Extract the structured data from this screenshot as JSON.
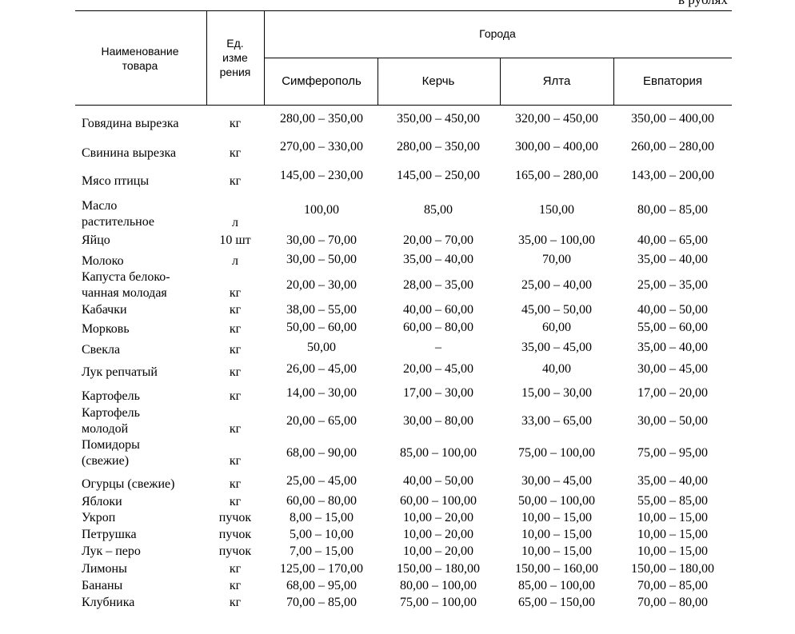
{
  "note": "в рублях",
  "table": {
    "header": {
      "name": "Наименование\nтовара",
      "unit": "Ед.\nизме\nрения",
      "group": "Города",
      "cities": [
        "Симферополь",
        "Керчь",
        "Ялта",
        "Евпатория"
      ]
    },
    "rows": [
      {
        "name": "Говядина вырезка",
        "unit": "кг",
        "prices": [
          "280,00 – 350,00",
          "350,00 – 450,00",
          "320,00 – 450,00",
          "350,00 – 400,00"
        ]
      },
      {
        "name": "Свинина вырезка",
        "unit": "кг",
        "prices": [
          "270,00 – 330,00",
          "280,00 – 350,00",
          "300,00 – 400,00",
          "260,00 – 280,00"
        ]
      },
      {
        "name": "Мясо птицы",
        "unit": "кг",
        "prices": [
          "145,00 – 230,00",
          "145,00 – 250,00",
          "165,00 – 280,00",
          "143,00 – 200,00"
        ]
      },
      {
        "name": "Масло\nрастительное",
        "unit": "л",
        "prices": [
          "100,00",
          "85,00",
          "150,00",
          "80,00 – 85,00"
        ]
      },
      {
        "name": "Яйцо",
        "unit": "10 шт",
        "prices": [
          "30,00 – 70,00",
          "20,00 – 70,00",
          "35,00 – 100,00",
          "40,00 – 65,00"
        ]
      },
      {
        "name": "Молоко",
        "unit": "л",
        "prices": [
          "30,00 – 50,00",
          "35,00 – 40,00",
          "70,00",
          "35,00 – 40,00"
        ]
      },
      {
        "name": "Капуста белоко-\nчанная молодая",
        "unit": "кг",
        "prices": [
          "20,00 – 30,00",
          "28,00 – 35,00",
          "25,00 – 40,00",
          "25,00 – 35,00"
        ]
      },
      {
        "name": "Кабачки",
        "unit": "кг",
        "prices": [
          "38,00 – 55,00",
          "40,00 – 60,00",
          "45,00 – 50,00",
          "40,00 – 50,00"
        ]
      },
      {
        "name": "Морковь",
        "unit": "кг",
        "prices": [
          "50,00 – 60,00",
          "60,00 – 80,00",
          "60,00",
          "55,00 – 60,00"
        ]
      },
      {
        "name": "Свекла",
        "unit": "кг",
        "prices": [
          "50,00",
          "–",
          "35,00 – 45,00",
          "35,00 – 40,00"
        ]
      },
      {
        "name": "Лук репчатый",
        "unit": "кг",
        "prices": [
          "26,00 – 45,00",
          "20,00 – 45,00",
          "40,00",
          "30,00 – 45,00"
        ]
      },
      {
        "name": "Картофель",
        "unit": "кг",
        "prices": [
          "14,00 – 30,00",
          "17,00 – 30,00",
          "15,00 – 30,00",
          "17,00 – 20,00"
        ]
      },
      {
        "name": "Картофель\nмолодой",
        "unit": "кг",
        "prices": [
          "20,00 – 65,00",
          "30,00 – 80,00",
          "33,00 – 65,00",
          "30,00 – 50,00"
        ]
      },
      {
        "name": "Помидоры\n(свежие)",
        "unit": "кг",
        "prices": [
          "68,00 – 90,00",
          "85,00 – 100,00",
          "75,00 – 100,00",
          "75,00 – 95,00"
        ]
      },
      {
        "name": "Огурцы (свежие)",
        "unit": "кг",
        "prices": [
          "25,00 – 45,00",
          "40,00 – 50,00",
          "30,00 – 45,00",
          "35,00 – 40,00"
        ]
      },
      {
        "name": "Яблоки",
        "unit": "кг",
        "prices": [
          "60,00 – 80,00",
          "60,00 – 100,00",
          "50,00 – 100,00",
          "55,00 – 85,00"
        ]
      },
      {
        "name": "Укроп",
        "unit": "пучок",
        "prices": [
          "8,00 – 15,00",
          "10,00 – 20,00",
          "10,00 – 15,00",
          "10,00 – 15,00"
        ]
      },
      {
        "name": "Петрушка",
        "unit": "пучок",
        "prices": [
          "5,00 – 10,00",
          "10,00 – 20,00",
          "10,00 – 15,00",
          "10,00 – 15,00"
        ]
      },
      {
        "name": "Лук – перо",
        "unit": "пучок",
        "prices": [
          "7,00 – 15,00",
          "10,00 – 20,00",
          "10,00 – 15,00",
          "10,00 – 15,00"
        ]
      },
      {
        "name": "Лимоны",
        "unit": "кг",
        "prices": [
          "125,00 – 170,00",
          "150,00 – 180,00",
          "150,00 – 160,00",
          "150,00 – 180,00"
        ]
      },
      {
        "name": "Бананы",
        "unit": "кг",
        "prices": [
          "68,00 – 95,00",
          "80,00 – 100,00",
          "85,00 – 100,00",
          "70,00 – 85,00"
        ]
      },
      {
        "name": "Клубника",
        "unit": "кг",
        "prices": [
          "70,00 – 85,00",
          "75,00 – 100,00",
          "65,00 – 150,00",
          "70,00 – 80,00"
        ]
      }
    ]
  }
}
